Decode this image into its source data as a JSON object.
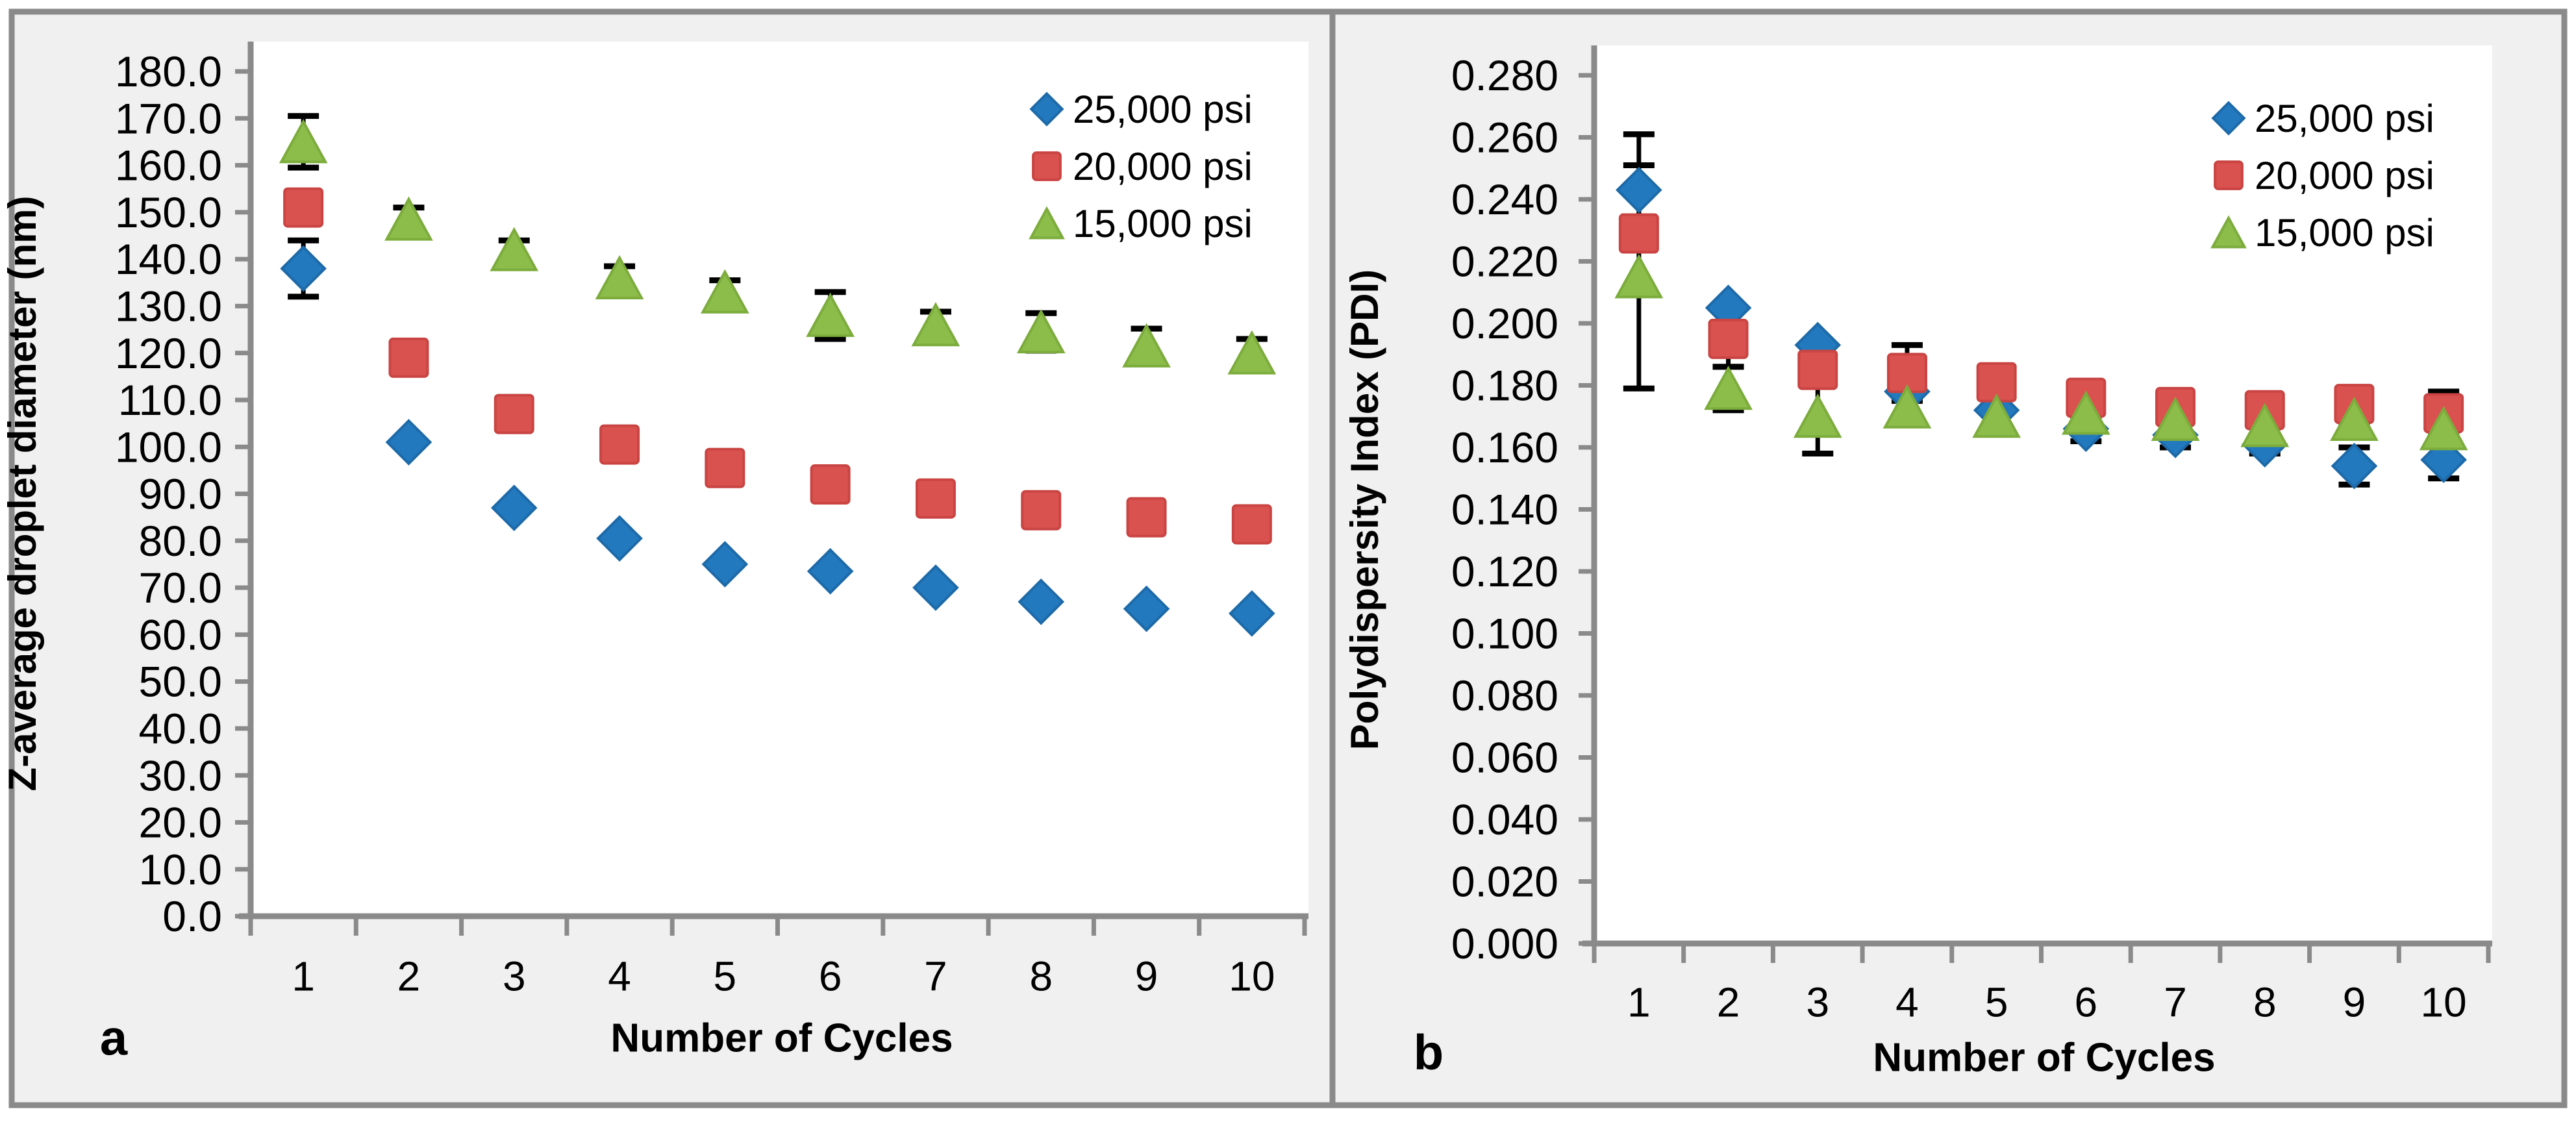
{
  "figure": {
    "background": "#ffffff",
    "panel_background": "#F0F0F0",
    "plot_background": "#FFFFFF",
    "axis_color": "#8A8A8A",
    "border_color": "#8A8A8A",
    "text_color": "#000000",
    "error_bar_color": "#000000"
  },
  "chart_data": [
    {
      "id": "a",
      "panel_label": "a",
      "type": "scatter",
      "title": "",
      "xlabel": "Number of Cycles",
      "ylabel": "Z-average droplet diameter (nm)",
      "x": [
        1,
        2,
        3,
        4,
        5,
        6,
        7,
        8,
        9,
        10
      ],
      "ylim": [
        0,
        180
      ],
      "ytick_step": 10,
      "ytick_decimals": 1,
      "grid": false,
      "legend_position": "top-right",
      "series": [
        {
          "name": "25,000 psi",
          "marker": "diamond",
          "color": "#2379BE",
          "edge": "#1D6AA9",
          "values": [
            138,
            101,
            87,
            80.5,
            75,
            73.5,
            70,
            67,
            65.5,
            64.5
          ],
          "errors": [
            6,
            0,
            0,
            0,
            0,
            0,
            0,
            0,
            0,
            0
          ]
        },
        {
          "name": "20,000 psi",
          "marker": "square",
          "color": "#DA5250",
          "edge": "#C94442",
          "values": [
            151,
            119,
            107,
            100.5,
            95.5,
            92,
            89,
            86.5,
            85,
            83.5
          ],
          "errors": [
            0,
            0,
            0,
            0,
            0,
            0,
            0,
            0,
            0,
            0
          ]
        },
        {
          "name": "15,000 psi",
          "marker": "triangle",
          "color": "#8CBD4B",
          "edge": "#7CAC3C",
          "values": [
            165,
            148.5,
            142,
            136,
            133,
            128,
            126,
            124.5,
            121.5,
            120
          ],
          "errors": [
            5.5,
            2.5,
            2,
            2.5,
            2.5,
            5,
            2.8,
            4,
            3.7,
            3
          ]
        }
      ]
    },
    {
      "id": "b",
      "panel_label": "b",
      "type": "scatter",
      "title": "",
      "xlabel": "Number of Cycles",
      "ylabel": "Polydispersity Index (PDI)",
      "x": [
        1,
        2,
        3,
        4,
        5,
        6,
        7,
        8,
        9,
        10
      ],
      "ylim": [
        0,
        0.28
      ],
      "ytick_step": 0.02,
      "ytick_decimals": 3,
      "grid": false,
      "legend_position": "top-right",
      "series": [
        {
          "name": "25,000 psi",
          "marker": "diamond",
          "color": "#2379BE",
          "edge": "#1D6AA9",
          "values": [
            0.243,
            0.205,
            0.193,
            0.178,
            0.172,
            0.166,
            0.164,
            0.161,
            0.154,
            0.156
          ],
          "errors": [
            0.018,
            0,
            0,
            0,
            0,
            0.004,
            0.004,
            0.003,
            0.006,
            0.006
          ]
        },
        {
          "name": "20,000 psi",
          "marker": "square",
          "color": "#DA5250",
          "edge": "#C94442",
          "values": [
            0.229,
            0.195,
            0.185,
            0.184,
            0.181,
            0.176,
            0.173,
            0.172,
            0.174,
            0.171
          ],
          "errors": [
            0,
            0.009,
            0,
            0.009,
            0.004,
            0,
            0,
            0,
            0.003,
            0.007
          ]
        },
        {
          "name": "15,000 psi",
          "marker": "triangle",
          "color": "#8CBD4B",
          "edge": "#7CAC3C",
          "values": [
            0.215,
            0.179,
            0.17,
            0.173,
            0.17,
            0.171,
            0.169,
            0.167,
            0.169,
            0.166
          ],
          "errors": [
            0.036,
            0.007,
            0.012,
            0.004,
            0.003,
            0.004,
            0.003,
            0.003,
            0.002,
            0.004
          ]
        }
      ]
    }
  ]
}
